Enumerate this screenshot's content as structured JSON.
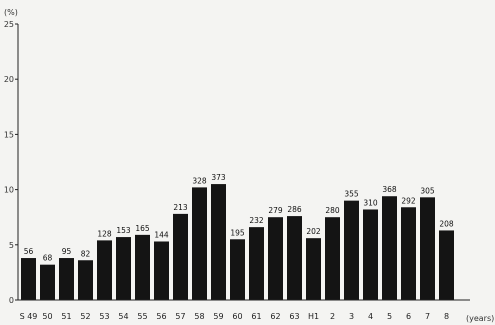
{
  "chart_data": {
    "type": "bar",
    "ylabel": "(%)",
    "xlabel": "(years)",
    "ylim": [
      0,
      25
    ],
    "yticks": [
      0,
      5,
      10,
      15,
      20,
      25
    ],
    "grid": false,
    "categories": [
      "S 49",
      "50",
      "51",
      "52",
      "53",
      "54",
      "55",
      "56",
      "57",
      "58",
      "59",
      "60",
      "61",
      "62",
      "63",
      "H1",
      "2",
      "3",
      "4",
      "5",
      "6",
      "7",
      "8"
    ],
    "values": [
      3.8,
      3.2,
      3.8,
      3.6,
      5.4,
      5.7,
      5.9,
      5.3,
      7.8,
      10.2,
      10.5,
      5.5,
      6.6,
      7.5,
      7.6,
      5.6,
      7.5,
      9.0,
      8.2,
      9.4,
      8.4,
      9.3,
      6.3
    ],
    "data_labels": [
      "56",
      "68",
      "95",
      "82",
      "128",
      "153",
      "165",
      "144",
      "213",
      "328",
      "373",
      "195",
      "232",
      "279",
      "286",
      "202",
      "280",
      "355",
      "310",
      "368",
      "292",
      "305",
      "208"
    ],
    "bar_color": "#141414"
  }
}
